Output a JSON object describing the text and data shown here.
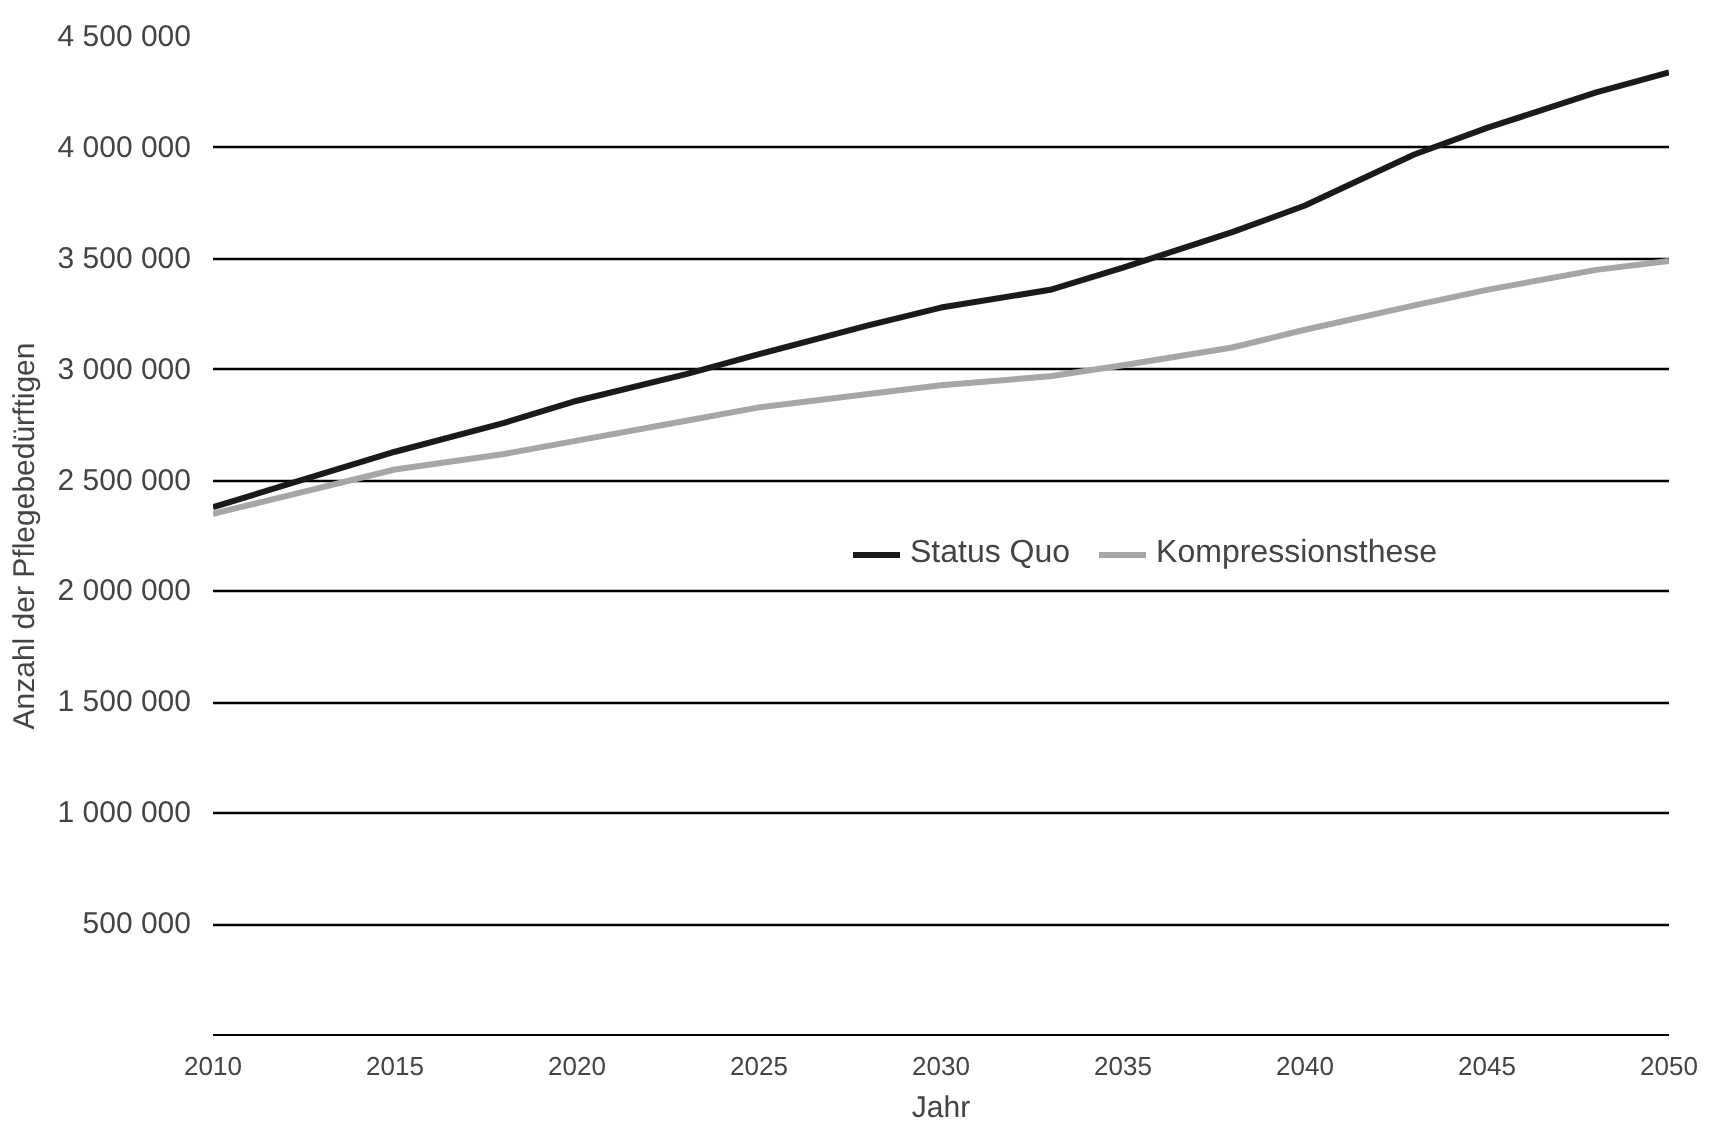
{
  "chart_data": {
    "type": "line",
    "xlabel": "Jahr",
    "ylabel": "Anzahl der Pflegebedürftigen",
    "x": [
      2010,
      2012,
      2015,
      2018,
      2020,
      2023,
      2025,
      2028,
      2030,
      2033,
      2035,
      2038,
      2040,
      2043,
      2045,
      2048,
      2050
    ],
    "series": [
      {
        "name": "Status Quo",
        "color": "#1a1a1a",
        "values": [
          2380000,
          2480000,
          2630000,
          2760000,
          2860000,
          2980000,
          3070000,
          3200000,
          3280000,
          3360000,
          3460000,
          3620000,
          3740000,
          3970000,
          4090000,
          4250000,
          4340000
        ]
      },
      {
        "name": "Kompressionsthese",
        "color": "#a6a6a6",
        "values": [
          2350000,
          2430000,
          2550000,
          2620000,
          2680000,
          2770000,
          2830000,
          2890000,
          2930000,
          2970000,
          3020000,
          3100000,
          3180000,
          3290000,
          3360000,
          3450000,
          3490000
        ]
      }
    ],
    "xlim": [
      2010,
      2050
    ],
    "xticks": [
      2010,
      2015,
      2020,
      2025,
      2030,
      2035,
      2040,
      2045,
      2050
    ],
    "ylim": [
      0,
      4500000
    ],
    "yticks": [
      {
        "value": 0,
        "label": null
      },
      {
        "value": 500000,
        "label": "500 000"
      },
      {
        "value": 1000000,
        "label": "1 000 000"
      },
      {
        "value": 1500000,
        "label": "1 500 000"
      },
      {
        "value": 2000000,
        "label": "2 000 000"
      },
      {
        "value": 2500000,
        "label": "2 500 000"
      },
      {
        "value": 3000000,
        "label": "3 000 000"
      },
      {
        "value": 3500000,
        "label": "3 500 000"
      },
      {
        "value": 4000000,
        "label": "4 000 000"
      },
      {
        "value": 4500000,
        "label": "4 500 000"
      }
    ],
    "grid": "y",
    "legend": "right",
    "marker": "none",
    "line_style": "solid"
  }
}
